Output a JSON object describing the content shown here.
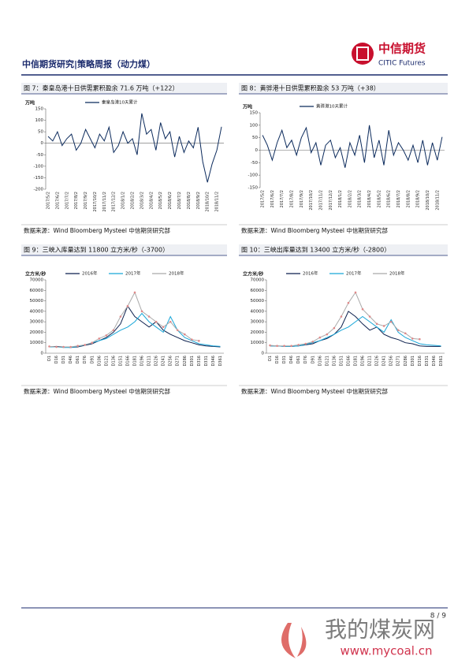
{
  "header": {
    "title": "中信期货研究|策略周报（动力煤）",
    "logo_cn": "中信期货",
    "logo_en": "CITIC Futures"
  },
  "chart_data": [
    {
      "type": "line",
      "title": "图 7：秦皇岛港十日供需累积盈余 71.6 万吨（+122）",
      "y_label": "万吨",
      "categories": [
        "2017/5/2",
        null,
        "2017/6/2",
        null,
        "2017/7/2",
        null,
        "2017/8/2",
        null,
        "2017/9/2",
        null,
        "2017/10/2",
        null,
        "2017/11/2",
        null,
        "2017/12/2",
        null,
        "2018/1/2",
        null,
        "2018/2/2",
        null,
        "2018/3/2",
        null,
        "2018/4/2",
        null,
        "2018/5/2",
        null,
        "2018/6/2",
        null,
        "2018/7/2",
        null,
        "2018/8/2",
        null,
        "2018/9/2",
        null,
        "2018/10/2",
        null,
        "2018/11/2",
        null
      ],
      "series": [
        {
          "name": "秦皇岛港10天累计",
          "color": "#0b2a5c",
          "values": [
            30,
            10,
            50,
            -10,
            20,
            40,
            -30,
            0,
            60,
            20,
            -20,
            40,
            10,
            70,
            -40,
            -10,
            50,
            0,
            20,
            -50,
            130,
            40,
            60,
            -30,
            90,
            20,
            50,
            -60,
            30,
            -40,
            10,
            -20,
            70,
            -80,
            -170,
            -90,
            -30,
            71.6
          ]
        }
      ],
      "ylim": [
        -200,
        150
      ],
      "yticks": [
        -200,
        -150,
        -100,
        -50,
        0,
        50,
        100,
        150
      ],
      "source": "数据来源：Wind Bloomberg Mysteel 中信期货研究部"
    },
    {
      "type": "line",
      "title": "图 8：黄骅港十日供需累积盈余 53 万吨（+38）",
      "y_label": "万吨",
      "categories": [
        "2017/5/2",
        null,
        "2017/6/2",
        null,
        "2017/7/2",
        null,
        "2017/8/2",
        null,
        "2017/9/2",
        null,
        "2017/10/2",
        null,
        "2017/11/2",
        null,
        "2017/12/2",
        null,
        "2018/1/2",
        null,
        "2018/2/2",
        null,
        "2018/3/2",
        null,
        "2018/4/2",
        null,
        "2018/5/2",
        null,
        "2018/6/2",
        null,
        "2018/7/2",
        null,
        "2018/8/2",
        null,
        "2018/9/2",
        null,
        "2018/10/2",
        null,
        "2018/11/2",
        null
      ],
      "series": [
        {
          "name": "黄骅港10天累计",
          "color": "#0b2a5c",
          "values": [
            60,
            20,
            -40,
            30,
            80,
            10,
            40,
            -20,
            50,
            90,
            -10,
            30,
            -60,
            20,
            40,
            -30,
            10,
            -70,
            30,
            -20,
            60,
            -50,
            100,
            -30,
            40,
            -60,
            80,
            -20,
            30,
            0,
            -40,
            20,
            -50,
            40,
            -60,
            30,
            -40,
            53
          ]
        }
      ],
      "ylim": [
        -150,
        150
      ],
      "yticks": [
        -150,
        -100,
        -50,
        0,
        50,
        100,
        150
      ],
      "source": "数据来源：Wind Bloomberg Mysteel 中信期货研究部"
    },
    {
      "type": "line",
      "title": "图 9：三峡入库量达到 11800 立方米/秒（-3700）",
      "y_label": "立方米/秒",
      "categories": [
        "D1",
        "D16",
        "D31",
        "D46",
        "D61",
        "D76",
        "D91",
        "D106",
        "D121",
        "D136",
        "D151",
        "D166",
        "D181",
        "D196",
        "D211",
        "D226",
        "D241",
        "D256",
        "D271",
        "D286",
        "D301",
        "D316",
        "D331",
        "D346",
        "D361"
      ],
      "series": [
        {
          "name": "2016年",
          "color": "#0b1f4d",
          "values": [
            6000,
            6500,
            6000,
            5500,
            6000,
            7500,
            9000,
            12000,
            15000,
            20000,
            28000,
            45000,
            35000,
            30000,
            25000,
            30000,
            22000,
            18000,
            15000,
            12000,
            10000,
            8000,
            7000,
            6500,
            6000
          ]
        },
        {
          "name": "2017年",
          "color": "#18a6d8",
          "values": [
            6000,
            6000,
            5500,
            5500,
            6500,
            8000,
            10000,
            12000,
            14000,
            18000,
            22000,
            25000,
            30000,
            38000,
            30000,
            25000,
            20000,
            35000,
            22000,
            15000,
            12000,
            9000,
            8000,
            7000,
            6500
          ]
        },
        {
          "name": "2018年",
          "color": "#a9a9a9",
          "marker": "#e08a8a",
          "values": [
            6500,
            6000,
            6000,
            6000,
            7000,
            8000,
            10000,
            14000,
            17000,
            22000,
            35000,
            45000,
            58000,
            40000,
            35000,
            30000,
            25000,
            30000,
            22000,
            18000,
            13000,
            11800,
            null,
            null,
            null
          ]
        }
      ],
      "ylim": [
        0,
        70000
      ],
      "yticks": [
        0,
        10000,
        20000,
        30000,
        40000,
        50000,
        60000,
        70000
      ],
      "source": "数据来源：Wind Bloomberg Mysteel 中信期货研究部"
    },
    {
      "type": "line",
      "title": "图 10：三峡出库量达到 13400 立方米/秒（-2800）",
      "y_label": "立方米/秒",
      "categories": [
        "D1",
        "D16",
        "D31",
        "D46",
        "D61",
        "D76",
        "D91",
        "D106",
        "D121",
        "D136",
        "D151",
        "D166",
        "D181",
        "D196",
        "D211",
        "D226",
        "D241",
        "D256",
        "D271",
        "D286",
        "D301",
        "D316",
        "D331",
        "D346",
        "D361"
      ],
      "series": [
        {
          "name": "2016年",
          "color": "#0b1f4d",
          "values": [
            7000,
            7000,
            6500,
            6500,
            7000,
            8000,
            9000,
            12000,
            14000,
            18000,
            25000,
            40000,
            35000,
            28000,
            22000,
            25000,
            18000,
            15000,
            13000,
            10000,
            9000,
            7000,
            6500,
            6500,
            6500
          ]
        },
        {
          "name": "2017年",
          "color": "#18a6d8",
          "values": [
            7000,
            7000,
            6500,
            6500,
            7000,
            8500,
            10000,
            12000,
            15000,
            18000,
            22000,
            25000,
            30000,
            35000,
            30000,
            25000,
            20000,
            32000,
            20000,
            15000,
            12000,
            9000,
            8000,
            7500,
            7000
          ]
        },
        {
          "name": "2018年",
          "color": "#a9a9a9",
          "marker": "#e08a8a",
          "values": [
            7500,
            7000,
            7000,
            7000,
            8000,
            9000,
            11000,
            15000,
            18000,
            24000,
            35000,
            48000,
            58000,
            42000,
            35000,
            28000,
            26000,
            30000,
            22000,
            19000,
            14000,
            13400,
            null,
            null,
            null
          ]
        }
      ],
      "ylim": [
        0,
        70000
      ],
      "yticks": [
        0,
        10000,
        20000,
        30000,
        40000,
        50000,
        60000,
        70000
      ],
      "source": "数据来源：Wind Bloomberg Mysteel 中信期货研究部"
    }
  ],
  "footer": {
    "page": "8 / 9"
  },
  "watermark": {
    "title": "我的煤炭网",
    "url": "www.mycoal.cn"
  }
}
